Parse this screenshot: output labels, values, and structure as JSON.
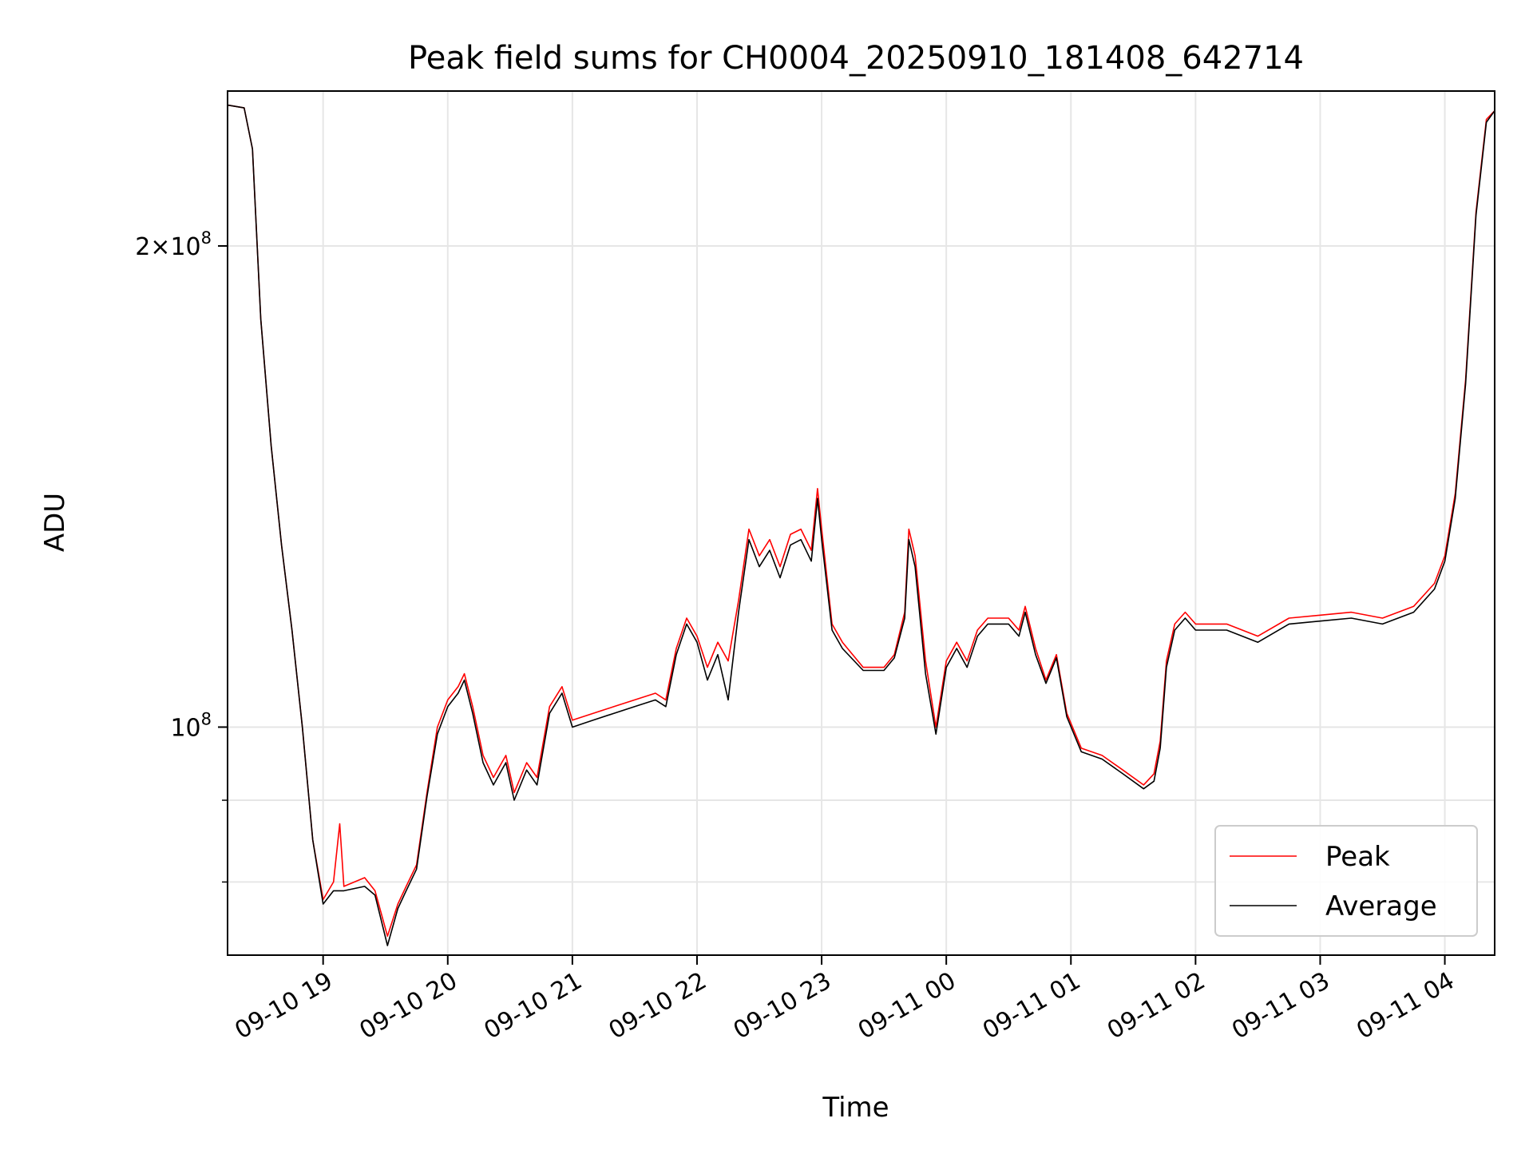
{
  "chart_data": {
    "type": "line",
    "title": "Peak field sums for CH0004_20250910_181408_642714",
    "xlabel": "Time",
    "ylabel": "ADU",
    "y_scale": "log",
    "ylim": [
      72000000,
      250000000
    ],
    "xlim": [
      "2025-09-10 18:14",
      "2025-09-11 04:24"
    ],
    "grid": true,
    "legend_position": "lower-right",
    "x_ticks": [
      {
        "t": "2025-09-10 19:00",
        "label": "09-10 19"
      },
      {
        "t": "2025-09-10 20:00",
        "label": "09-10 20"
      },
      {
        "t": "2025-09-10 21:00",
        "label": "09-10 21"
      },
      {
        "t": "2025-09-10 22:00",
        "label": "09-10 22"
      },
      {
        "t": "2025-09-10 23:00",
        "label": "09-10 23"
      },
      {
        "t": "2025-09-11 00:00",
        "label": "09-11 00"
      },
      {
        "t": "2025-09-11 01:00",
        "label": "09-11 01"
      },
      {
        "t": "2025-09-11 02:00",
        "label": "09-11 02"
      },
      {
        "t": "2025-09-11 03:00",
        "label": "09-11 03"
      },
      {
        "t": "2025-09-11 04:00",
        "label": "09-11 04"
      }
    ],
    "y_major_ticks": [
      {
        "value": 100000000,
        "base": "10",
        "exp": "8",
        "mant": ""
      },
      {
        "value": 200000000,
        "base": "10",
        "exp": "8",
        "mant": "2"
      }
    ],
    "y_minor_ticks": [
      80000000,
      90000000
    ],
    "series": [
      {
        "name": "Peak",
        "color": "#ff0000",
        "points": [
          [
            "2025-09-10 18:14",
            245000000
          ],
          [
            "2025-09-10 18:22",
            244000000
          ],
          [
            "2025-09-10 18:26",
            230000000
          ],
          [
            "2025-09-10 18:30",
            180000000
          ],
          [
            "2025-09-10 18:35",
            150000000
          ],
          [
            "2025-09-10 18:40",
            130000000
          ],
          [
            "2025-09-10 18:45",
            115000000
          ],
          [
            "2025-09-10 18:50",
            100000000
          ],
          [
            "2025-09-10 18:55",
            85000000
          ],
          [
            "2025-09-10 19:00",
            78000000
          ],
          [
            "2025-09-10 19:05",
            80000000
          ],
          [
            "2025-09-10 19:08",
            87000000
          ],
          [
            "2025-09-10 19:10",
            79500000
          ],
          [
            "2025-09-10 19:20",
            80500000
          ],
          [
            "2025-09-10 19:25",
            79000000
          ],
          [
            "2025-09-10 19:31",
            74000000
          ],
          [
            "2025-09-10 19:36",
            77500000
          ],
          [
            "2025-09-10 19:40",
            79500000
          ],
          [
            "2025-09-10 19:45",
            82000000
          ],
          [
            "2025-09-10 19:50",
            91000000
          ],
          [
            "2025-09-10 19:55",
            100000000
          ],
          [
            "2025-09-10 20:00",
            104000000
          ],
          [
            "2025-09-10 20:05",
            106000000
          ],
          [
            "2025-09-10 20:08",
            108000000
          ],
          [
            "2025-09-10 20:12",
            103000000
          ],
          [
            "2025-09-10 20:17",
            96000000
          ],
          [
            "2025-09-10 20:22",
            93000000
          ],
          [
            "2025-09-10 20:28",
            96000000
          ],
          [
            "2025-09-10 20:32",
            91000000
          ],
          [
            "2025-09-10 20:38",
            95000000
          ],
          [
            "2025-09-10 20:43",
            93000000
          ],
          [
            "2025-09-10 20:49",
            103000000
          ],
          [
            "2025-09-10 20:55",
            106000000
          ],
          [
            "2025-09-10 21:00",
            101000000
          ],
          [
            "2025-09-10 21:10",
            102000000
          ],
          [
            "2025-09-10 21:20",
            103000000
          ],
          [
            "2025-09-10 21:30",
            104000000
          ],
          [
            "2025-09-10 21:40",
            105000000
          ],
          [
            "2025-09-10 21:45",
            104000000
          ],
          [
            "2025-09-10 21:50",
            112000000
          ],
          [
            "2025-09-10 21:55",
            117000000
          ],
          [
            "2025-09-10 22:00",
            114000000
          ],
          [
            "2025-09-10 22:05",
            109000000
          ],
          [
            "2025-09-10 22:10",
            113000000
          ],
          [
            "2025-09-10 22:15",
            110000000
          ],
          [
            "2025-09-10 22:20",
            120000000
          ],
          [
            "2025-09-10 22:25",
            133000000
          ],
          [
            "2025-09-10 22:30",
            128000000
          ],
          [
            "2025-09-10 22:35",
            131000000
          ],
          [
            "2025-09-10 22:40",
            126000000
          ],
          [
            "2025-09-10 22:45",
            132000000
          ],
          [
            "2025-09-10 22:50",
            133000000
          ],
          [
            "2025-09-10 22:55",
            129000000
          ],
          [
            "2025-09-10 22:58",
            141000000
          ],
          [
            "2025-09-10 23:00",
            133000000
          ],
          [
            "2025-09-10 23:05",
            116000000
          ],
          [
            "2025-09-10 23:10",
            113000000
          ],
          [
            "2025-09-10 23:20",
            109000000
          ],
          [
            "2025-09-10 23:30",
            109000000
          ],
          [
            "2025-09-10 23:35",
            111000000
          ],
          [
            "2025-09-10 23:40",
            118000000
          ],
          [
            "2025-09-10 23:42",
            133000000
          ],
          [
            "2025-09-10 23:45",
            128000000
          ],
          [
            "2025-09-10 23:50",
            110000000
          ],
          [
            "2025-09-10 23:55",
            100000000
          ],
          [
            "2025-09-11 00:00",
            110000000
          ],
          [
            "2025-09-11 00:05",
            113000000
          ],
          [
            "2025-09-11 00:10",
            110000000
          ],
          [
            "2025-09-11 00:15",
            115000000
          ],
          [
            "2025-09-11 00:20",
            117000000
          ],
          [
            "2025-09-11 00:30",
            117000000
          ],
          [
            "2025-09-11 00:35",
            115000000
          ],
          [
            "2025-09-11 00:38",
            119000000
          ],
          [
            "2025-09-11 00:43",
            112000000
          ],
          [
            "2025-09-11 00:48",
            107000000
          ],
          [
            "2025-09-11 00:53",
            111000000
          ],
          [
            "2025-09-11 00:58",
            102000000
          ],
          [
            "2025-09-11 01:05",
            97000000
          ],
          [
            "2025-09-11 01:15",
            96000000
          ],
          [
            "2025-09-11 01:25",
            94000000
          ],
          [
            "2025-09-11 01:35",
            92000000
          ],
          [
            "2025-09-11 01:40",
            93500000
          ],
          [
            "2025-09-11 01:43",
            98000000
          ],
          [
            "2025-09-11 01:46",
            110000000
          ],
          [
            "2025-09-11 01:50",
            116000000
          ],
          [
            "2025-09-11 01:55",
            118000000
          ],
          [
            "2025-09-11 02:00",
            116000000
          ],
          [
            "2025-09-11 02:15",
            116000000
          ],
          [
            "2025-09-11 02:30",
            114000000
          ],
          [
            "2025-09-11 02:45",
            117000000
          ],
          [
            "2025-09-11 03:00",
            117500000
          ],
          [
            "2025-09-11 03:15",
            118000000
          ],
          [
            "2025-09-11 03:30",
            117000000
          ],
          [
            "2025-09-11 03:45",
            119000000
          ],
          [
            "2025-09-11 03:55",
            123000000
          ],
          [
            "2025-09-11 04:00",
            128000000
          ],
          [
            "2025-09-11 04:05",
            140000000
          ],
          [
            "2025-09-11 04:10",
            165000000
          ],
          [
            "2025-09-11 04:15",
            210000000
          ],
          [
            "2025-09-11 04:20",
            240000000
          ],
          [
            "2025-09-11 04:24",
            243000000
          ]
        ]
      },
      {
        "name": "Average",
        "color": "#000000",
        "points": [
          [
            "2025-09-10 18:14",
            245000000
          ],
          [
            "2025-09-10 18:22",
            244000000
          ],
          [
            "2025-09-10 18:26",
            230000000
          ],
          [
            "2025-09-10 18:30",
            180000000
          ],
          [
            "2025-09-10 18:35",
            150000000
          ],
          [
            "2025-09-10 18:40",
            130000000
          ],
          [
            "2025-09-10 18:45",
            115000000
          ],
          [
            "2025-09-10 18:50",
            100000000
          ],
          [
            "2025-09-10 18:55",
            85000000
          ],
          [
            "2025-09-10 19:00",
            77500000
          ],
          [
            "2025-09-10 19:05",
            79000000
          ],
          [
            "2025-09-10 19:10",
            79000000
          ],
          [
            "2025-09-10 19:20",
            79500000
          ],
          [
            "2025-09-10 19:25",
            78500000
          ],
          [
            "2025-09-10 19:31",
            73000000
          ],
          [
            "2025-09-10 19:36",
            77000000
          ],
          [
            "2025-09-10 19:40",
            79000000
          ],
          [
            "2025-09-10 19:45",
            81500000
          ],
          [
            "2025-09-10 19:50",
            90500000
          ],
          [
            "2025-09-10 19:55",
            99000000
          ],
          [
            "2025-09-10 20:00",
            103000000
          ],
          [
            "2025-09-10 20:05",
            105000000
          ],
          [
            "2025-09-10 20:08",
            107000000
          ],
          [
            "2025-09-10 20:12",
            102000000
          ],
          [
            "2025-09-10 20:17",
            95000000
          ],
          [
            "2025-09-10 20:22",
            92000000
          ],
          [
            "2025-09-10 20:28",
            95000000
          ],
          [
            "2025-09-10 20:32",
            90000000
          ],
          [
            "2025-09-10 20:38",
            94000000
          ],
          [
            "2025-09-10 20:43",
            92000000
          ],
          [
            "2025-09-10 20:49",
            102000000
          ],
          [
            "2025-09-10 20:55",
            105000000
          ],
          [
            "2025-09-10 21:00",
            100000000
          ],
          [
            "2025-09-10 21:10",
            101000000
          ],
          [
            "2025-09-10 21:20",
            102000000
          ],
          [
            "2025-09-10 21:30",
            103000000
          ],
          [
            "2025-09-10 21:40",
            104000000
          ],
          [
            "2025-09-10 21:45",
            103000000
          ],
          [
            "2025-09-10 21:50",
            111000000
          ],
          [
            "2025-09-10 21:55",
            116000000
          ],
          [
            "2025-09-10 22:00",
            113000000
          ],
          [
            "2025-09-10 22:05",
            107000000
          ],
          [
            "2025-09-10 22:10",
            111000000
          ],
          [
            "2025-09-10 22:15",
            104000000
          ],
          [
            "2025-09-10 22:20",
            118000000
          ],
          [
            "2025-09-10 22:25",
            131000000
          ],
          [
            "2025-09-10 22:30",
            126000000
          ],
          [
            "2025-09-10 22:35",
            129000000
          ],
          [
            "2025-09-10 22:40",
            124000000
          ],
          [
            "2025-09-10 22:45",
            130000000
          ],
          [
            "2025-09-10 22:50",
            131000000
          ],
          [
            "2025-09-10 22:55",
            127000000
          ],
          [
            "2025-09-10 22:58",
            139000000
          ],
          [
            "2025-09-10 23:00",
            131000000
          ],
          [
            "2025-09-10 23:05",
            115000000
          ],
          [
            "2025-09-10 23:10",
            112000000
          ],
          [
            "2025-09-10 23:20",
            108500000
          ],
          [
            "2025-09-10 23:30",
            108500000
          ],
          [
            "2025-09-10 23:35",
            110500000
          ],
          [
            "2025-09-10 23:40",
            117000000
          ],
          [
            "2025-09-10 23:42",
            131000000
          ],
          [
            "2025-09-10 23:45",
            126000000
          ],
          [
            "2025-09-10 23:50",
            108000000
          ],
          [
            "2025-09-10 23:55",
            99000000
          ],
          [
            "2025-09-11 00:00",
            109000000
          ],
          [
            "2025-09-11 00:05",
            112000000
          ],
          [
            "2025-09-11 00:10",
            109000000
          ],
          [
            "2025-09-11 00:15",
            114000000
          ],
          [
            "2025-09-11 00:20",
            116000000
          ],
          [
            "2025-09-11 00:30",
            116000000
          ],
          [
            "2025-09-11 00:35",
            114000000
          ],
          [
            "2025-09-11 00:38",
            118000000
          ],
          [
            "2025-09-11 00:43",
            111000000
          ],
          [
            "2025-09-11 00:48",
            106500000
          ],
          [
            "2025-09-11 00:53",
            110500000
          ],
          [
            "2025-09-11 00:58",
            101500000
          ],
          [
            "2025-09-11 01:05",
            96500000
          ],
          [
            "2025-09-11 01:15",
            95500000
          ],
          [
            "2025-09-11 01:25",
            93500000
          ],
          [
            "2025-09-11 01:35",
            91500000
          ],
          [
            "2025-09-11 01:40",
            92500000
          ],
          [
            "2025-09-11 01:43",
            97000000
          ],
          [
            "2025-09-11 01:46",
            109000000
          ],
          [
            "2025-09-11 01:50",
            115000000
          ],
          [
            "2025-09-11 01:55",
            117000000
          ],
          [
            "2025-09-11 02:00",
            115000000
          ],
          [
            "2025-09-11 02:15",
            115000000
          ],
          [
            "2025-09-11 02:30",
            113000000
          ],
          [
            "2025-09-11 02:45",
            116000000
          ],
          [
            "2025-09-11 03:00",
            116500000
          ],
          [
            "2025-09-11 03:15",
            117000000
          ],
          [
            "2025-09-11 03:30",
            116000000
          ],
          [
            "2025-09-11 03:45",
            118000000
          ],
          [
            "2025-09-11 03:55",
            122000000
          ],
          [
            "2025-09-11 04:00",
            127000000
          ],
          [
            "2025-09-11 04:05",
            139000000
          ],
          [
            "2025-09-11 04:10",
            164000000
          ],
          [
            "2025-09-11 04:15",
            209000000
          ],
          [
            "2025-09-11 04:20",
            239000000
          ],
          [
            "2025-09-11 04:24",
            243000000
          ]
        ]
      }
    ]
  }
}
